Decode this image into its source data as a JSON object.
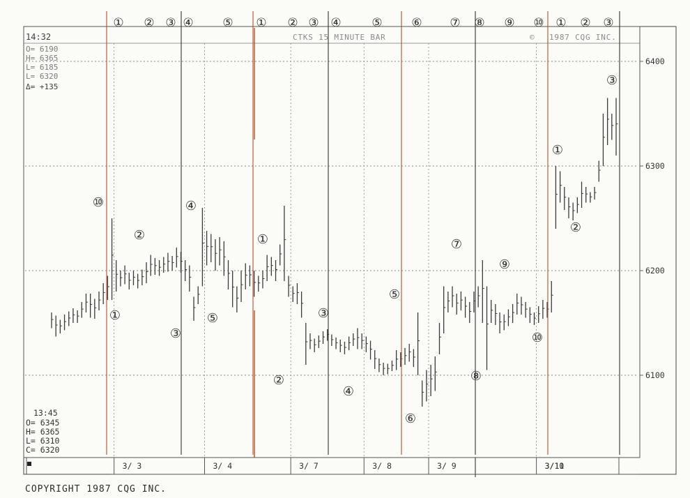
{
  "header": {
    "time": "14:32",
    "title": "CTKS 15 MINUTE BAR",
    "copyright": "1987 CQG INC."
  },
  "readout_top": {
    "open": "O= 6190",
    "high": "H= 6365",
    "low": "L= 6185",
    "last": "L= 6320",
    "change": "Δ= +135"
  },
  "readout_bottom": {
    "time": "13:45",
    "open": "O= 6345",
    "high": "H= 6365",
    "low": "L= 6310",
    "close": "C= 6320"
  },
  "footer": {
    "copyright": "COPYRIGHT 1987 CQG INC."
  },
  "colors": {
    "background": "#fbfbf8",
    "bars": "#3a3a3a",
    "grid": "#8a8a8a",
    "red_line": "#b8502a",
    "black_line": "#333333",
    "annotation": "#2d2d2d"
  },
  "chart_data": {
    "type": "ohlc_bar",
    "title": "CTKS 15 MINUTE BAR",
    "ylim": [
      6050,
      6430
    ],
    "yticks": [
      6100,
      6200,
      6300,
      6400
    ],
    "sessions": [
      "3/ 3",
      "3/ 4",
      "3/ 7",
      "3/ 8",
      "3/ 9",
      "3/10",
      "3/11"
    ],
    "grid": "dotted horizontal at each y tick; dotted vertical at session starts",
    "bars": [
      {
        "h": 6160,
        "l": 6145
      },
      {
        "h": 6157,
        "l": 6137
      },
      {
        "h": 6153,
        "l": 6140
      },
      {
        "h": 6158,
        "l": 6143
      },
      {
        "h": 6161,
        "l": 6147
      },
      {
        "h": 6164,
        "l": 6150
      },
      {
        "h": 6162,
        "l": 6150
      },
      {
        "h": 6170,
        "l": 6155
      },
      {
        "h": 6178,
        "l": 6160
      },
      {
        "h": 6178,
        "l": 6155
      },
      {
        "h": 6173,
        "l": 6154
      },
      {
        "h": 6180,
        "l": 6162
      },
      {
        "h": 6188,
        "l": 6168
      },
      {
        "h": 6195,
        "l": 6172
      },
      {
        "h": 6250,
        "l": 6172
      },
      {
        "h": 6210,
        "l": 6180
      },
      {
        "h": 6200,
        "l": 6185
      },
      {
        "h": 6205,
        "l": 6187
      },
      {
        "h": 6198,
        "l": 6182
      },
      {
        "h": 6200,
        "l": 6186
      },
      {
        "h": 6197,
        "l": 6183
      },
      {
        "h": 6201,
        "l": 6186
      },
      {
        "h": 6208,
        "l": 6188
      },
      {
        "h": 6215,
        "l": 6195
      },
      {
        "h": 6212,
        "l": 6196
      },
      {
        "h": 6210,
        "l": 6195
      },
      {
        "h": 6213,
        "l": 6198
      },
      {
        "h": 6217,
        "l": 6199
      },
      {
        "h": 6214,
        "l": 6200
      },
      {
        "h": 6222,
        "l": 6203
      },
      {
        "h": 6218,
        "l": 6198
      },
      {
        "h": 6210,
        "l": 6190
      },
      {
        "h": 6205,
        "l": 6180
      },
      {
        "h": 6175,
        "l": 6152
      },
      {
        "h": 6185,
        "l": 6168
      },
      {
        "h": 6260,
        "l": 6185
      },
      {
        "h": 6238,
        "l": 6205
      },
      {
        "h": 6235,
        "l": 6208
      },
      {
        "h": 6230,
        "l": 6200
      },
      {
        "h": 6232,
        "l": 6205
      },
      {
        "h": 6228,
        "l": 6195
      },
      {
        "h": 6210,
        "l": 6182
      },
      {
        "h": 6200,
        "l": 6165
      },
      {
        "h": 6185,
        "l": 6160
      },
      {
        "h": 6200,
        "l": 6170
      },
      {
        "h": 6207,
        "l": 6182
      },
      {
        "h": 6205,
        "l": 6185
      },
      {
        "h": 6200,
        "l": 6175
      },
      {
        "h": 6195,
        "l": 6180
      },
      {
        "h": 6200,
        "l": 6183
      },
      {
        "h": 6215,
        "l": 6190
      },
      {
        "h": 6213,
        "l": 6195
      },
      {
        "h": 6210,
        "l": 6190
      },
      {
        "h": 6225,
        "l": 6205
      },
      {
        "h": 6262,
        "l": 6190
      },
      {
        "h": 6195,
        "l": 6175
      },
      {
        "h": 6185,
        "l": 6170
      },
      {
        "h": 6188,
        "l": 6168
      },
      {
        "h": 6180,
        "l": 6155
      },
      {
        "h": 6150,
        "l": 6110
      },
      {
        "h": 6140,
        "l": 6125
      },
      {
        "h": 6135,
        "l": 6122
      },
      {
        "h": 6138,
        "l": 6126
      },
      {
        "h": 6142,
        "l": 6130
      },
      {
        "h": 6144,
        "l": 6133
      },
      {
        "h": 6139,
        "l": 6128
      },
      {
        "h": 6136,
        "l": 6125
      },
      {
        "h": 6134,
        "l": 6122
      },
      {
        "h": 6132,
        "l": 6120
      },
      {
        "h": 6137,
        "l": 6124
      },
      {
        "h": 6140,
        "l": 6128
      },
      {
        "h": 6145,
        "l": 6125
      },
      {
        "h": 6140,
        "l": 6125
      },
      {
        "h": 6137,
        "l": 6122
      },
      {
        "h": 6133,
        "l": 6115
      },
      {
        "h": 6124,
        "l": 6106
      },
      {
        "h": 6116,
        "l": 6103
      },
      {
        "h": 6112,
        "l": 6100
      },
      {
        "h": 6111,
        "l": 6101
      },
      {
        "h": 6114,
        "l": 6104
      },
      {
        "h": 6124,
        "l": 6105
      },
      {
        "h": 6122,
        "l": 6108
      },
      {
        "h": 6126,
        "l": 6110
      },
      {
        "h": 6130,
        "l": 6113
      },
      {
        "h": 6125,
        "l": 6108
      },
      {
        "h": 6160,
        "l": 6100
      },
      {
        "h": 6095,
        "l": 6070
      },
      {
        "h": 6105,
        "l": 6075
      },
      {
        "h": 6110,
        "l": 6080
      },
      {
        "h": 6118,
        "l": 6085
      },
      {
        "h": 6150,
        "l": 6120
      },
      {
        "h": 6185,
        "l": 6140
      },
      {
        "h": 6180,
        "l": 6160
      },
      {
        "h": 6185,
        "l": 6165
      },
      {
        "h": 6178,
        "l": 6158
      },
      {
        "h": 6180,
        "l": 6162
      },
      {
        "h": 6175,
        "l": 6155
      },
      {
        "h": 6170,
        "l": 6150
      },
      {
        "h": 6180,
        "l": 6160
      },
      {
        "h": 6185,
        "l": 6165
      },
      {
        "h": 6210,
        "l": 6150
      },
      {
        "h": 6185,
        "l": 6105
      },
      {
        "h": 6172,
        "l": 6150
      },
      {
        "h": 6168,
        "l": 6148
      },
      {
        "h": 6160,
        "l": 6140
      },
      {
        "h": 6158,
        "l": 6143
      },
      {
        "h": 6163,
        "l": 6147
      },
      {
        "h": 6168,
        "l": 6150
      },
      {
        "h": 6178,
        "l": 6158
      },
      {
        "h": 6175,
        "l": 6158
      },
      {
        "h": 6170,
        "l": 6155
      },
      {
        "h": 6165,
        "l": 6150
      },
      {
        "h": 6160,
        "l": 6148
      },
      {
        "h": 6166,
        "l": 6150
      },
      {
        "h": 6172,
        "l": 6154
      },
      {
        "h": 6170,
        "l": 6155
      },
      {
        "h": 6190,
        "l": 6160
      },
      {
        "h": 6300,
        "l": 6240
      },
      {
        "h": 6295,
        "l": 6265
      },
      {
        "h": 6280,
        "l": 6258
      },
      {
        "h": 6270,
        "l": 6250
      },
      {
        "h": 6265,
        "l": 6248
      },
      {
        "h": 6270,
        "l": 6255
      },
      {
        "h": 6285,
        "l": 6260
      },
      {
        "h": 6280,
        "l": 6265
      },
      {
        "h": 6275,
        "l": 6265
      },
      {
        "h": 6280,
        "l": 6268
      },
      {
        "h": 6305,
        "l": 6285
      },
      {
        "h": 6350,
        "l": 6300
      },
      {
        "h": 6365,
        "l": 6320
      },
      {
        "h": 6350,
        "l": 6325
      },
      {
        "h": 6365,
        "l": 6310
      }
    ]
  },
  "annotations": {
    "top_counts": [
      "①",
      "②",
      "③",
      "④",
      "⑤",
      "①",
      "②",
      "③",
      "④",
      "⑤",
      "⑥",
      "⑦",
      "⑧",
      "⑨",
      "⑩",
      "①",
      "②",
      "③"
    ],
    "chart_labels": [
      "⑩",
      "①",
      "②",
      "③",
      "④",
      "⑤",
      "①",
      "②",
      "③",
      "④",
      "⑤",
      "⑥",
      "⑦",
      "⑧",
      "⑨",
      "⑩",
      "①",
      "②",
      "③"
    ]
  },
  "markers": {
    "red_vertical_lines": 6,
    "black_vertical_lines": 3
  }
}
